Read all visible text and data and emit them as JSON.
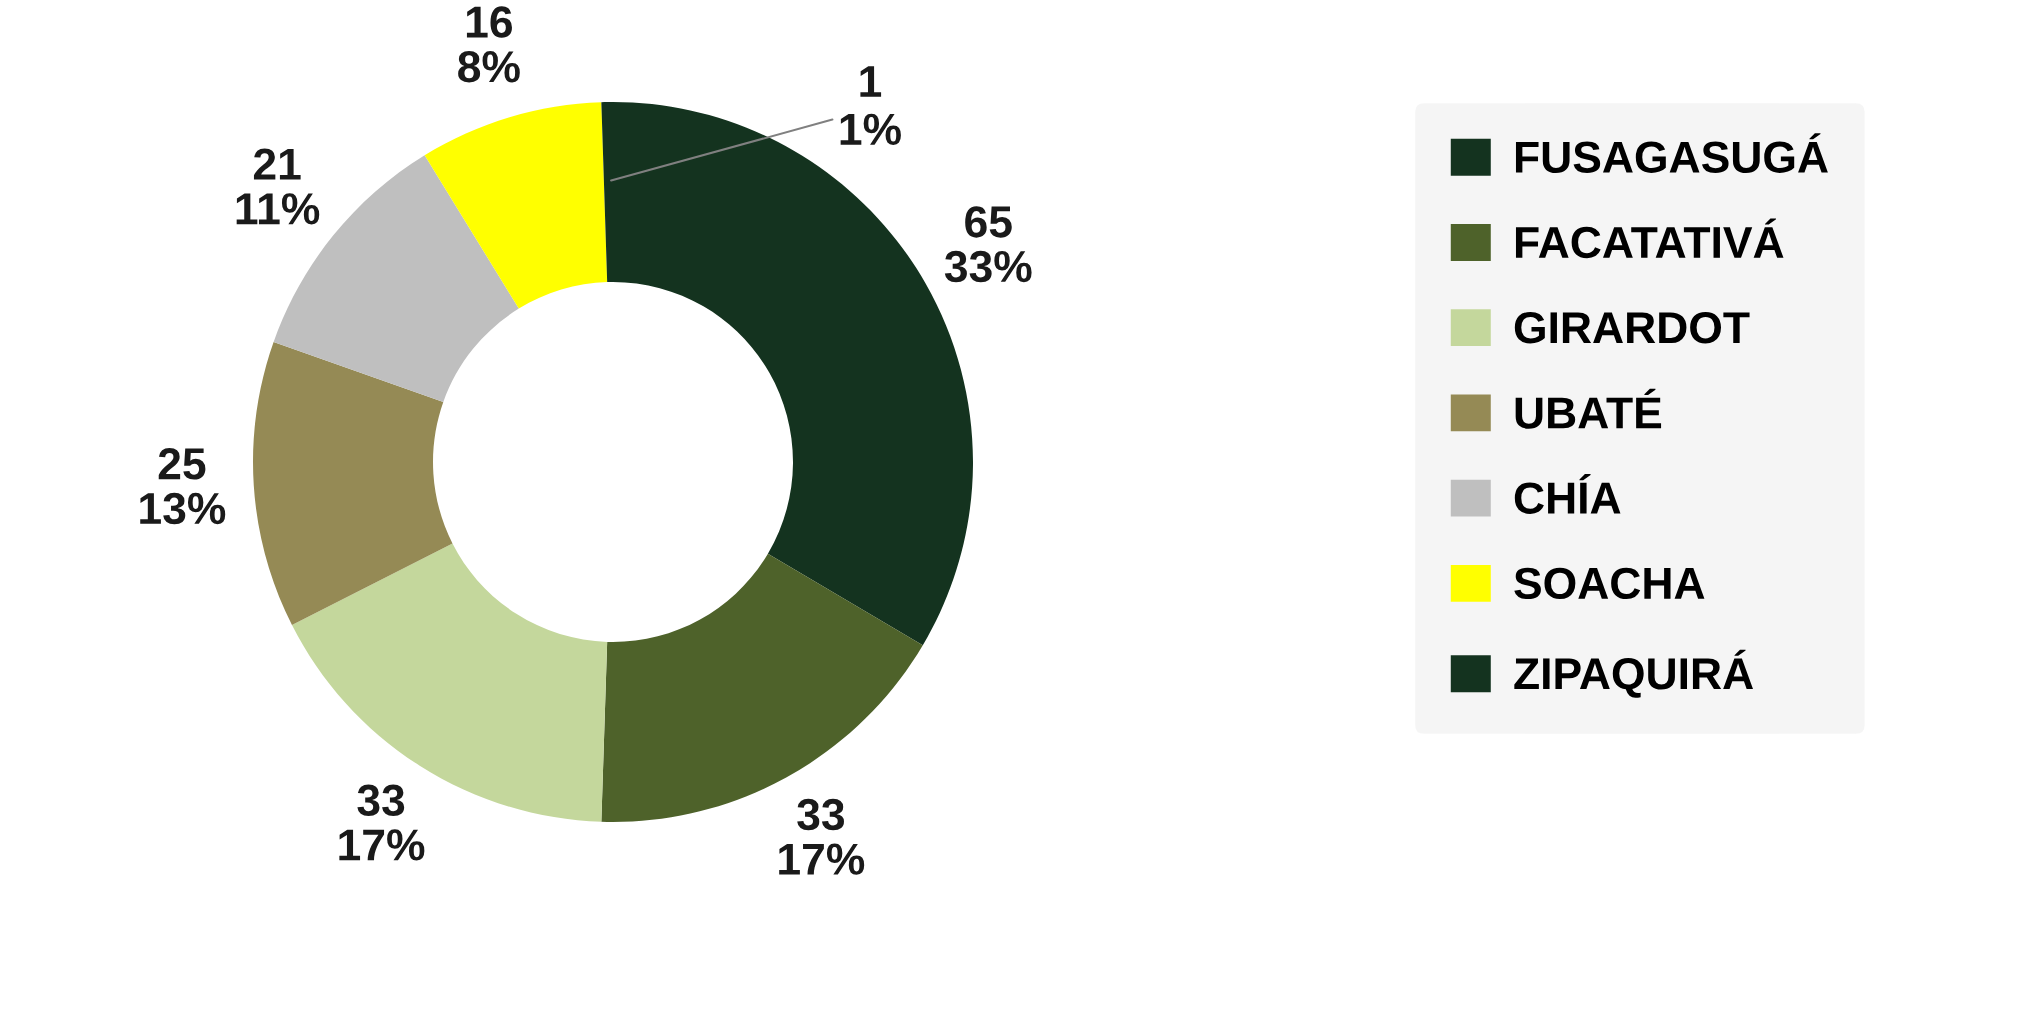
{
  "chart_data": {
    "type": "donut",
    "categories": [
      "FUSAGASUGÁ",
      "FACATATIVÁ",
      "GIRARDOT",
      "UBATÉ",
      "CHÍA",
      "SOACHA",
      "ZIPAQUIRÁ"
    ],
    "values": [
      65,
      33,
      33,
      25,
      21,
      16,
      1
    ],
    "colors": [
      "#14331f",
      "#4e622a",
      "#c4d79c",
      "#958a55",
      "#bfbfbf",
      "#ffff00",
      "#14331f"
    ],
    "value_labels": [
      "65\n33%",
      "33\n17%",
      "33\n17%",
      "25\n13%",
      "21\n11%",
      "16\n8%",
      "1\n1%"
    ],
    "legend": "right"
  }
}
